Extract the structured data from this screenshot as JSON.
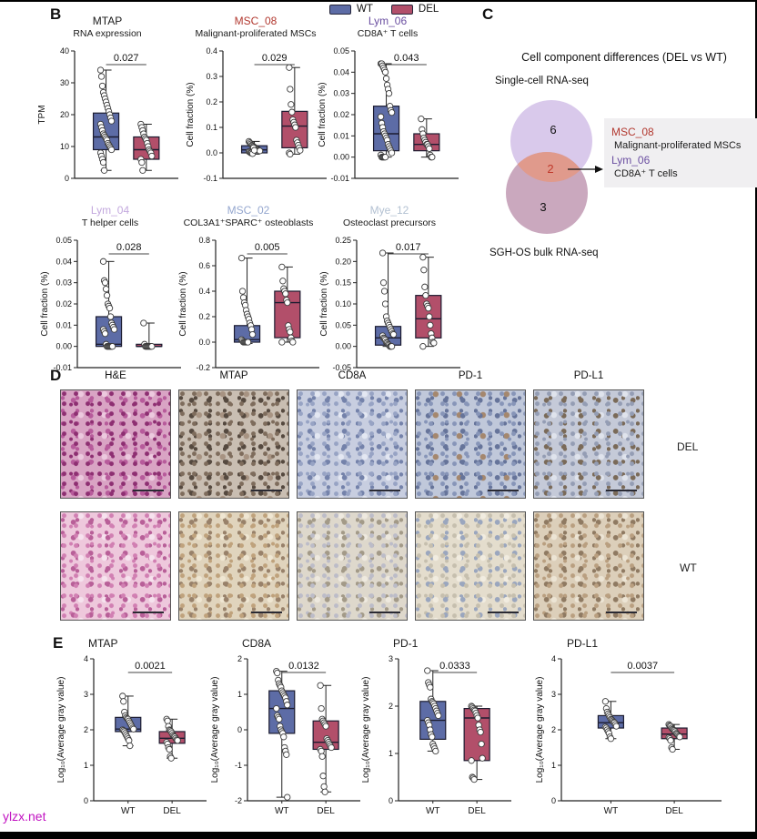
{
  "panels": {
    "b": "B",
    "c": "C",
    "d": "D",
    "e": "E"
  },
  "legend": {
    "items": [
      {
        "label": "WT",
        "color": "#5d6ca6"
      },
      {
        "label": "DEL",
        "color": "#b24f6a"
      }
    ]
  },
  "panel_c": {
    "title": "Cell component differences (DEL vs WT)",
    "top_set_label": "Single-cell RNA-seq",
    "bottom_set_label": "SGH-OS bulk RNA-seq",
    "top_only_count": "6",
    "overlap_count": "2",
    "bottom_only_count": "3",
    "top_circle_color": "#d7c6ea",
    "bottom_circle_color": "#c49fb7",
    "overlap_color": "#e09a8c",
    "overlap_count_color": "#c0392b",
    "callout": {
      "items": [
        {
          "label": "MSC_08",
          "color": "#b23930",
          "desc": "Malignant-proliferated MSCs"
        },
        {
          "label": "Lym_06",
          "color": "#6b4fa1",
          "desc": "CD8A⁺ T cells"
        }
      ]
    }
  },
  "panel_d": {
    "columns": [
      "H&E",
      "MTAP",
      "CD8A",
      "PD-1",
      "PD-L1"
    ],
    "rows": [
      {
        "label": "DEL",
        "tints": [
          "#d9a4c4",
          "#c9beb2",
          "#c8cee0",
          "#c0c8da",
          "#c5cad8"
        ]
      },
      {
        "label": "WT",
        "tints": [
          "#eec8dc",
          "#e0d4bd",
          "#ded8cc",
          "#e4ddcd",
          "#dccfba"
        ]
      }
    ]
  },
  "watermark": "ylzx.net",
  "chart_data": [
    {
      "type": "box",
      "panel": "B",
      "module": "MTAP",
      "module_color": "#1a1a1a",
      "subtitle": "RNA expression",
      "ylabel": "TPM",
      "p": "0.027",
      "ylim": [
        0,
        40
      ],
      "tick_vals": [
        0,
        10,
        20,
        30,
        40
      ],
      "tick_labels": [
        "0",
        "10",
        "20",
        "30",
        "40"
      ],
      "xlabels": null,
      "series": [
        {
          "name": "WT",
          "color": "#5d6ca6",
          "q1": 9,
          "median": 13,
          "q3": 20.5,
          "whisker_low": 2.5,
          "whisker_high": 34,
          "points": [
            34,
            32,
            29,
            27,
            26,
            25,
            24,
            23,
            22,
            21,
            20,
            19,
            18,
            17,
            16,
            15,
            14,
            13.5,
            13,
            12.5,
            12,
            11,
            10.5,
            10,
            9.5,
            9,
            8,
            7,
            6,
            5,
            2.5
          ]
        },
        {
          "name": "DEL",
          "color": "#b24f6a",
          "q1": 6,
          "median": 9,
          "q3": 13,
          "whisker_low": 2.5,
          "whisker_high": 17,
          "points": [
            17,
            16,
            15,
            14,
            13,
            12.5,
            12,
            11,
            10,
            9,
            8.5,
            8,
            7,
            6,
            5,
            2.5
          ]
        }
      ]
    },
    {
      "type": "box",
      "panel": "B",
      "module": "MSC_08",
      "module_color": "#b23930",
      "subtitle": "Malignant-proliferated MSCs",
      "ylabel": "Cell fraction (%)",
      "p": "0.029",
      "ylim": [
        -0.1,
        0.4
      ],
      "tick_vals": [
        -0.1,
        0,
        0.1,
        0.2,
        0.3,
        0.4
      ],
      "tick_labels": [
        "-0.1",
        "0.0",
        "0.1",
        "0.2",
        "0.3",
        "0.4"
      ],
      "xlabels": null,
      "series": [
        {
          "name": "WT",
          "color": "#5d6ca6",
          "q1": 0.0,
          "median": 0.012,
          "q3": 0.028,
          "whisker_low": -0.005,
          "whisker_high": 0.045,
          "points": [
            0.045,
            0.04,
            0.035,
            0.03,
            0.028,
            0.025,
            0.022,
            0.02,
            0.018,
            0.015,
            0.012,
            0.01,
            0.008,
            0.005,
            0.003,
            0.0,
            0.0,
            -0.003,
            0.02,
            0.01
          ]
        },
        {
          "name": "DEL",
          "color": "#b24f6a",
          "q1": 0.02,
          "median": 0.105,
          "q3": 0.163,
          "whisker_low": -0.005,
          "whisker_high": 0.335,
          "points": [
            0.335,
            0.25,
            0.19,
            0.16,
            0.13,
            0.12,
            0.11,
            0.1,
            0.05,
            0.04,
            0.03,
            0.02,
            0.01,
            0.0,
            -0.005
          ]
        }
      ]
    },
    {
      "type": "box",
      "panel": "B",
      "module": "Lym_06",
      "module_color": "#6b4fa1",
      "subtitle": "CD8A⁺ T cells",
      "ylabel": "Cell fraction (%)",
      "p": "0.043",
      "ylim": [
        -0.01,
        0.05
      ],
      "tick_vals": [
        -0.01,
        0,
        0.01,
        0.02,
        0.03,
        0.04,
        0.05
      ],
      "tick_labels": [
        "-0.01",
        "0.00",
        "0.01",
        "0.02",
        "0.03",
        "0.04",
        "0.05"
      ],
      "xlabels": null,
      "series": [
        {
          "name": "WT",
          "color": "#5d6ca6",
          "q1": 0.003,
          "median": 0.011,
          "q3": 0.024,
          "whisker_low": 0.0,
          "whisker_high": 0.044,
          "points": [
            0.044,
            0.044,
            0.043,
            0.042,
            0.041,
            0.04,
            0.037,
            0.034,
            0.032,
            0.03,
            0.024,
            0.022,
            0.021,
            0.019,
            0.016,
            0.014,
            0.012,
            0.011,
            0.01,
            0.009,
            0.008,
            0.006,
            0.005,
            0.004,
            0.003,
            0.002,
            0.001,
            0.0,
            0.0,
            0.0,
            0.0,
            0.0
          ]
        },
        {
          "name": "DEL",
          "color": "#b24f6a",
          "q1": 0.003,
          "median": 0.006,
          "q3": 0.011,
          "whisker_low": 0.0,
          "whisker_high": 0.018,
          "points": [
            0.018,
            0.013,
            0.011,
            0.009,
            0.008,
            0.007,
            0.006,
            0.006,
            0.005,
            0.004,
            0.001,
            0.0,
            0.0
          ]
        }
      ]
    },
    {
      "type": "box",
      "panel": "B",
      "module": "Lym_04",
      "module_color": "#c3a9de",
      "subtitle": "T helper cells",
      "ylabel": "Cell fraction (%)",
      "p": "0.028",
      "ylim": [
        -0.01,
        0.05
      ],
      "tick_vals": [
        -0.01,
        0,
        0.01,
        0.02,
        0.03,
        0.04,
        0.05
      ],
      "tick_labels": [
        "-0.01",
        "0.00",
        "0.01",
        "0.02",
        "0.03",
        "0.04",
        "0.05"
      ],
      "xlabels": null,
      "series": [
        {
          "name": "WT",
          "color": "#5d6ca6",
          "q1": 0.0,
          "median": 0.001,
          "q3": 0.014,
          "whisker_low": 0.0,
          "whisker_high": 0.04,
          "points": [
            0.04,
            0.031,
            0.03,
            0.027,
            0.024,
            0.02,
            0.019,
            0.018,
            0.014,
            0.011,
            0.01,
            0.009,
            0.008,
            0.008,
            0.007,
            0.006,
            0.001,
            0.0,
            0.0,
            0.0,
            0.0,
            0.0,
            0.0,
            0.0
          ]
        },
        {
          "name": "DEL",
          "color": "#b24f6a",
          "q1": 0.0,
          "median": 0.0,
          "q3": 0.001,
          "whisker_low": 0.0,
          "whisker_high": 0.011,
          "points": [
            0.011,
            0.001,
            0.0,
            0.0,
            0.0,
            0.0,
            0.0,
            0.0,
            0.0,
            0.0
          ]
        }
      ]
    },
    {
      "type": "box",
      "panel": "B",
      "module": "MSC_02",
      "module_color": "#95a7cf",
      "subtitle": "COL3A1⁺SPARC⁺ osteoblasts",
      "ylabel": "Cell fraction (%)",
      "p": "0.005",
      "ylim": [
        -0.2,
        0.8
      ],
      "tick_vals": [
        -0.2,
        0,
        0.2,
        0.4,
        0.6,
        0.8
      ],
      "tick_labels": [
        "-0.2",
        "0.0",
        "0.2",
        "0.4",
        "0.6",
        "0.8"
      ],
      "xlabels": null,
      "series": [
        {
          "name": "WT",
          "color": "#5d6ca6",
          "q1": 0.0,
          "median": 0.02,
          "q3": 0.13,
          "whisker_low": -0.01,
          "whisker_high": 0.66,
          "points": [
            0.66,
            0.4,
            0.35,
            0.31,
            0.29,
            0.25,
            0.22,
            0.2,
            0.18,
            0.15,
            0.13,
            0.1,
            0.06,
            0.02,
            0.01,
            0.0,
            0.0,
            0.0,
            0.0,
            0.0,
            0.0
          ]
        },
        {
          "name": "DEL",
          "color": "#b24f6a",
          "q1": 0.035,
          "median": 0.31,
          "q3": 0.4,
          "whisker_low": 0.0,
          "whisker_high": 0.59,
          "points": [
            0.59,
            0.48,
            0.42,
            0.4,
            0.38,
            0.33,
            0.31,
            0.13,
            0.1,
            0.08,
            0.035,
            0.01,
            0.0,
            0.0
          ]
        }
      ]
    },
    {
      "type": "box",
      "panel": "B",
      "module": "Mye_12",
      "module_color": "#b3c1d2",
      "subtitle": "Osteoclast precursors",
      "ylabel": "Cell fraction (%)",
      "p": "0.017",
      "ylim": [
        -0.05,
        0.25
      ],
      "tick_vals": [
        -0.05,
        0,
        0.05,
        0.1,
        0.15,
        0.2,
        0.25
      ],
      "tick_labels": [
        "-0.05",
        "0.00",
        "0.05",
        "0.10",
        "0.15",
        "0.20",
        "0.25"
      ],
      "xlabels": null,
      "series": [
        {
          "name": "WT",
          "color": "#5d6ca6",
          "q1": 0.003,
          "median": 0.02,
          "q3": 0.047,
          "whisker_low": 0.0,
          "whisker_high": 0.22,
          "points": [
            0.22,
            0.15,
            0.13,
            0.1,
            0.07,
            0.06,
            0.055,
            0.05,
            0.045,
            0.04,
            0.035,
            0.03,
            0.028,
            0.025,
            0.02,
            0.018,
            0.015,
            0.01,
            0.008,
            0.005,
            0.003,
            0.0,
            0.0,
            0.0
          ]
        },
        {
          "name": "DEL",
          "color": "#b24f6a",
          "q1": 0.02,
          "median": 0.065,
          "q3": 0.12,
          "whisker_low": 0.0,
          "whisker_high": 0.21,
          "points": [
            0.21,
            0.18,
            0.14,
            0.12,
            0.1,
            0.095,
            0.09,
            0.07,
            0.05,
            0.03,
            0.02,
            0.01,
            0.008,
            0.0
          ]
        }
      ]
    },
    {
      "type": "box",
      "panel": "E",
      "module": "MTAP",
      "module_color": "#1a1a1a",
      "subtitle": null,
      "ylabel": "Log₁₀(Average gray value)",
      "p": "0.0021",
      "ylim": [
        0,
        4
      ],
      "tick_vals": [
        0,
        1,
        2,
        3,
        4
      ],
      "tick_labels": [
        "0",
        "1",
        "2",
        "3",
        "4"
      ],
      "xlabels": [
        "WT",
        "DEL"
      ],
      "series": [
        {
          "name": "WT",
          "color": "#5d6ca6",
          "q1": 1.95,
          "median": 2.02,
          "q3": 2.35,
          "whisker_low": 1.55,
          "whisker_high": 2.95,
          "points": [
            2.95,
            2.8,
            2.5,
            2.4,
            2.35,
            2.32,
            2.3,
            2.25,
            2.2,
            2.15,
            2.1,
            2.05,
            2.02,
            2.0,
            1.98,
            1.95,
            1.9,
            1.85,
            1.8,
            1.75,
            1.7,
            1.55
          ]
        },
        {
          "name": "DEL",
          "color": "#b24f6a",
          "q1": 1.62,
          "median": 1.76,
          "q3": 1.95,
          "whisker_low": 1.2,
          "whisker_high": 2.3,
          "points": [
            2.3,
            2.25,
            2.1,
            2.0,
            1.98,
            1.95,
            1.9,
            1.85,
            1.82,
            1.8,
            1.76,
            1.72,
            1.7,
            1.65,
            1.6,
            1.5,
            1.45,
            1.25,
            1.2
          ]
        }
      ]
    },
    {
      "type": "box",
      "panel": "E",
      "module": "CD8A",
      "module_color": "#1a1a1a",
      "subtitle": null,
      "ylabel": "Log₁₀(Average gray value)",
      "p": "0.0132",
      "ylim": [
        -2,
        2
      ],
      "tick_vals": [
        -2,
        -1,
        0,
        1,
        2
      ],
      "tick_labels": [
        "-2",
        "-1",
        "0",
        "1",
        "2"
      ],
      "xlabels": [
        "WT",
        "DEL"
      ],
      "series": [
        {
          "name": "WT",
          "color": "#5d6ca6",
          "q1": -0.1,
          "median": 0.6,
          "q3": 1.1,
          "whisker_low": -1.9,
          "whisker_high": 1.65,
          "points": [
            1.65,
            1.6,
            1.4,
            1.3,
            1.25,
            1.2,
            1.1,
            1.05,
            1.0,
            0.95,
            0.9,
            0.8,
            0.7,
            0.6,
            0.4,
            0.35,
            0.3,
            0.1,
            0.0,
            -0.05,
            -0.1,
            -0.2,
            -0.5,
            -0.6,
            -0.7,
            -1.9
          ]
        },
        {
          "name": "DEL",
          "color": "#b24f6a",
          "q1": -0.55,
          "median": -0.35,
          "q3": 0.25,
          "whisker_low": -1.75,
          "whisker_high": 1.25,
          "points": [
            1.25,
            0.6,
            0.3,
            0.25,
            0.2,
            0.15,
            0.1,
            -0.25,
            -0.3,
            -0.35,
            -0.4,
            -0.45,
            -0.5,
            -0.55,
            -0.6,
            -0.75,
            -1.3,
            -1.6,
            -1.75
          ]
        }
      ]
    },
    {
      "type": "box",
      "panel": "E",
      "module": "PD-1",
      "module_color": "#1a1a1a",
      "subtitle": null,
      "ylabel": "Log₁₀(Average gray value)",
      "p": "0.0333",
      "ylim": [
        0,
        3
      ],
      "tick_vals": [
        0,
        1,
        2,
        3
      ],
      "tick_labels": [
        "0",
        "1",
        "2",
        "3"
      ],
      "xlabels": [
        "WT",
        "DEL"
      ],
      "series": [
        {
          "name": "WT",
          "color": "#5d6ca6",
          "q1": 1.3,
          "median": 1.7,
          "q3": 2.1,
          "whisker_low": 1.05,
          "whisker_high": 2.75,
          "points": [
            2.75,
            2.5,
            2.45,
            2.4,
            2.15,
            2.1,
            2.08,
            2.05,
            2.0,
            1.95,
            1.9,
            1.85,
            1.8,
            1.7,
            1.65,
            1.6,
            1.5,
            1.4,
            1.35,
            1.2,
            1.15,
            1.1,
            1.05
          ]
        },
        {
          "name": "DEL",
          "color": "#b24f6a",
          "q1": 0.85,
          "median": 1.75,
          "q3": 1.95,
          "whisker_low": 0.45,
          "whisker_high": 2.0,
          "points": [
            2.0,
            1.98,
            1.95,
            1.92,
            1.9,
            1.85,
            1.8,
            1.75,
            1.6,
            1.5,
            1.45,
            1.2,
            0.9,
            0.85,
            0.5,
            0.48,
            0.45
          ]
        }
      ]
    },
    {
      "type": "box",
      "panel": "E",
      "module": "PD-L1",
      "module_color": "#1a1a1a",
      "subtitle": null,
      "ylabel": "Log₁₀(Average gray value)",
      "p": "0.0037",
      "ylim": [
        0,
        4
      ],
      "tick_vals": [
        0,
        1,
        2,
        3,
        4
      ],
      "tick_labels": [
        "0",
        "1",
        "2",
        "3",
        "4"
      ],
      "xlabels": [
        "WT",
        "DEL"
      ],
      "series": [
        {
          "name": "WT",
          "color": "#5d6ca6",
          "q1": 2.05,
          "median": 2.2,
          "q3": 2.4,
          "whisker_low": 1.75,
          "whisker_high": 2.8,
          "points": [
            2.8,
            2.6,
            2.5,
            2.45,
            2.4,
            2.35,
            2.3,
            2.28,
            2.25,
            2.22,
            2.2,
            2.15,
            2.1,
            2.08,
            2.05,
            2.0,
            1.95,
            1.9,
            1.8,
            1.75
          ]
        },
        {
          "name": "DEL",
          "color": "#b24f6a",
          "q1": 1.75,
          "median": 1.88,
          "q3": 2.05,
          "whisker_low": 1.45,
          "whisker_high": 2.15,
          "points": [
            2.15,
            2.12,
            2.1,
            2.05,
            2.02,
            2.0,
            1.98,
            1.95,
            1.9,
            1.88,
            1.85,
            1.82,
            1.8,
            1.78,
            1.75,
            1.7,
            1.5,
            1.45
          ]
        }
      ]
    }
  ]
}
